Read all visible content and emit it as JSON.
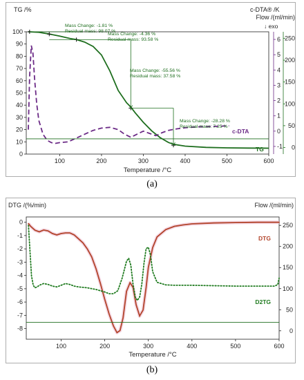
{
  "chart_data": [
    {
      "panel": "a",
      "type": "line",
      "xlabel": "Temperature /°C",
      "xticks": [
        100,
        200,
        300,
        400,
        500,
        600
      ],
      "xlim": [
        20,
        600
      ],
      "left_axis": {
        "label": "TG /%",
        "ylim": [
          0,
          100
        ],
        "ticks": [
          0,
          10,
          20,
          30,
          40,
          50,
          60,
          70,
          80,
          90,
          100
        ]
      },
      "mid_axis": {
        "label": "c-DTA® /K",
        "sublabel": "↓ exo",
        "ylim": [
          -1.5,
          6.5
        ],
        "ticks": [
          -1,
          0,
          1,
          2,
          3,
          4,
          5,
          6
        ]
      },
      "right_axis": {
        "label": "Flow /(ml/min)",
        "ylim": [
          -15,
          265
        ],
        "ticks": [
          0,
          50,
          100,
          150,
          200,
          250
        ]
      },
      "series": [
        {
          "name": "TG",
          "axis": "left",
          "color": "#1e6e1e",
          "style": "solid",
          "x": [
            25,
            50,
            75,
            100,
            125,
            140,
            160,
            180,
            200,
            220,
            240,
            260,
            270,
            280,
            300,
            320,
            340,
            360,
            372,
            400,
            450,
            500,
            550,
            600
          ],
          "y": [
            100,
            99.6,
            98.2,
            96.5,
            94.5,
            93.6,
            91.5,
            88,
            81,
            68,
            52,
            42,
            38.5,
            34,
            26,
            19,
            13.5,
            9.5,
            8,
            6.5,
            5.5,
            5.1,
            4.9,
            4.8
          ]
        },
        {
          "name": "c-DTA",
          "axis": "mid",
          "color": "#6b2a86",
          "style": "dashed",
          "x": [
            25,
            28,
            32,
            36,
            40,
            45,
            50,
            60,
            70,
            80,
            90,
            100,
            120,
            140,
            160,
            180,
            200,
            220,
            240,
            255,
            270,
            285,
            300,
            315,
            330,
            345,
            360,
            380,
            400,
            430,
            460,
            490,
            505
          ],
          "y": [
            0.1,
            3.5,
            5.6,
            5.1,
            3.4,
            1.8,
            0.7,
            -0.2,
            -0.6,
            -0.75,
            -0.8,
            -0.75,
            -0.7,
            -0.45,
            -0.2,
            0.05,
            0.2,
            0.25,
            0.1,
            -0.2,
            -0.4,
            -0.2,
            0.0,
            -0.15,
            -0.3,
            -0.1,
            0.05,
            0.15,
            0.22,
            0.28,
            0.3,
            0.33,
            0.35
          ]
        },
        {
          "name": "Flow",
          "axis": "right",
          "color": "#1e6e1e",
          "style": "solid",
          "x": [
            20,
            600
          ],
          "y": [
            20,
            20
          ]
        }
      ],
      "step_markers": {
        "x": [
          28,
          75,
          140,
          270,
          372
        ],
        "y": [
          100,
          98.07,
          93.58,
          37.58,
          7.25
        ]
      },
      "annotations": [
        {
          "line1": "Mass Change:   -1.81 %",
          "line2": "Residual mass:  98.07 %"
        },
        {
          "line1": "Mass Change:   -4.36 %",
          "line2": "Residual mass:  93.58 %"
        },
        {
          "line1": "Mass Change:   -55.56 %",
          "line2": "Residual mass:  37.58 %"
        },
        {
          "line1": "Mass Change:   -28.28 %",
          "line2": "Residual mass:    7.25 %"
        }
      ],
      "series_labels": [
        "c-DTA",
        "TG"
      ]
    },
    {
      "panel": "b",
      "type": "line",
      "xlabel": "Temperature /°C",
      "xticks": [
        100,
        200,
        300,
        400,
        500,
        600
      ],
      "xlim": [
        20,
        600
      ],
      "left_axis": {
        "label": "DTG /(%/min)",
        "ylim": [
          -8.8,
          0.4
        ],
        "ticks": [
          0,
          -1,
          -2,
          -3,
          -4,
          -5,
          -6,
          -7,
          -8
        ]
      },
      "right_axis": {
        "label": "Flow /(ml/min)",
        "ylim": [
          -20,
          270
        ],
        "ticks": [
          0,
          50,
          100,
          150,
          200,
          250
        ]
      },
      "series": [
        {
          "name": "DTG",
          "axis": "left",
          "color": "#b2432a",
          "style": "solid",
          "x": [
            25,
            30,
            40,
            50,
            60,
            70,
            80,
            90,
            100,
            110,
            120,
            130,
            140,
            150,
            160,
            170,
            180,
            190,
            200,
            210,
            220,
            228,
            235,
            242,
            250,
            258,
            265,
            272,
            280,
            288,
            295,
            300,
            310,
            320,
            340,
            360,
            380,
            400,
            450,
            500,
            550,
            600
          ],
          "y": [
            -0.1,
            -0.3,
            -0.6,
            -0.72,
            -0.58,
            -0.65,
            -0.85,
            -0.95,
            -0.85,
            -0.8,
            -0.8,
            -0.95,
            -1.25,
            -1.55,
            -2.0,
            -2.6,
            -3.5,
            -4.6,
            -5.8,
            -6.9,
            -7.8,
            -8.3,
            -8.15,
            -7.2,
            -5.2,
            -4.55,
            -4.9,
            -6.2,
            -7.05,
            -6.6,
            -4.9,
            -3.4,
            -1.9,
            -1.1,
            -0.55,
            -0.3,
            -0.2,
            -0.12,
            -0.05,
            -0.02,
            0.0,
            0.0
          ]
        },
        {
          "name": "D2TG",
          "axis": "right",
          "color": "#1e7a1e",
          "style": "dotted",
          "x": [
            25,
            28,
            32,
            36,
            40,
            45,
            50,
            60,
            70,
            80,
            90,
            100,
            110,
            120,
            130,
            140,
            150,
            160,
            170,
            180,
            190,
            200,
            210,
            220,
            230,
            240,
            250,
            255,
            260,
            265,
            270,
            275,
            280,
            285,
            290,
            295,
            300,
            305,
            310,
            320,
            340,
            360,
            400,
            450,
            500,
            550,
            590,
            597,
            600
          ],
          "y": [
            250,
            200,
            130,
            108,
            102,
            104,
            108,
            112,
            110,
            106,
            104,
            108,
            112,
            110,
            106,
            104,
            103,
            102,
            100,
            98,
            95,
            92,
            88,
            88,
            95,
            125,
            165,
            172,
            155,
            110,
            80,
            72,
            80,
            110,
            160,
            195,
            198,
            180,
            140,
            115,
            109,
            108,
            108,
            107,
            106,
            106,
            106,
            110,
            125
          ]
        },
        {
          "name": "Flow",
          "axis": "right",
          "color": "#1e6e1e",
          "style": "solid",
          "x": [
            20,
            600
          ],
          "y": [
            20,
            20
          ]
        }
      ],
      "series_labels": [
        "DTG",
        "D2TG"
      ]
    }
  ],
  "captions": {
    "a": "(a)",
    "b": "(b)"
  }
}
